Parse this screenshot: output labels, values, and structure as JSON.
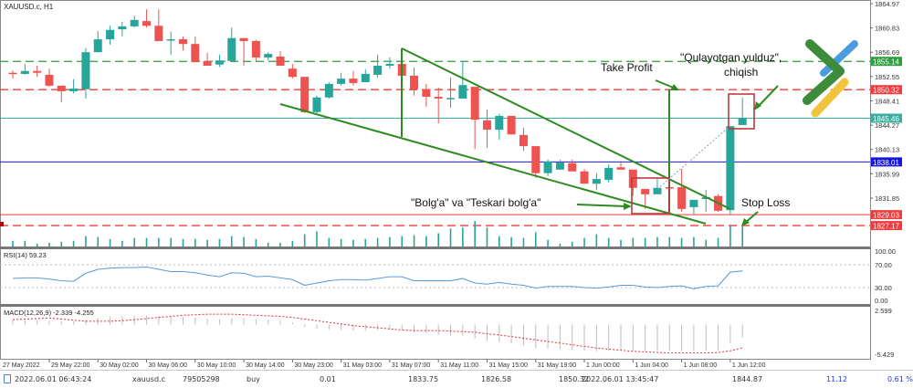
{
  "chart": {
    "symbol_label": "XAUUSD.c, H1",
    "rsi_label": "RSI(14) 59.23",
    "macd_label": "MACD(12,26,9) -2.339 -4.255",
    "colors": {
      "bull": "#26a69a",
      "bear": "#ef5350",
      "rsi": "#5b9bd5",
      "trend": "#2e8b22",
      "box": "#c0393b"
    },
    "price_axis": [
      "1864.97",
      "1860.83",
      "1856.69",
      "1852.55",
      "1848.41",
      "1844.27",
      "1840.13",
      "1835.99",
      "1831.85"
    ],
    "rsi_axis": [
      "100.00",
      "70.00",
      "30.00",
      "0.00"
    ],
    "macd_axis": [
      "2.599",
      "-5.429"
    ],
    "time_axis": [
      "27 May 2022",
      "29 May 22:00",
      "30 May 02:00",
      "30 May 06:00",
      "30 May 10:00",
      "30 May 14:00",
      "30 May 23:00",
      "31 May 03:00",
      "31 May 07:00",
      "31 May 11:00",
      "31 May 15:00",
      "31 May 19:00",
      "1 Jun 00:00",
      "1 Jun 04:00",
      "1 Jun 08:00",
      "1 Jun 12:00"
    ],
    "levels": [
      {
        "price": 1855.14,
        "label": "1855.14",
        "color": "#2e9e3e",
        "style": "dashed"
      },
      {
        "price": 1850.32,
        "label": "1850.32",
        "color": "#f03c3c",
        "style": "dashed"
      },
      {
        "price": 1845.46,
        "label": "1845.46",
        "color": "#3aaea0",
        "style": "solid"
      },
      {
        "price": 1838.01,
        "label": "1838.01",
        "color": "#1515e0",
        "style": "solid"
      },
      {
        "price": 1829.03,
        "label": "1829.03",
        "color": "#f03c3c",
        "style": "solid"
      },
      {
        "price": 1827.17,
        "label": "1827.17",
        "color": "#f03c3c",
        "style": "dashed"
      }
    ],
    "annotations": {
      "take_profit": "Take Profit",
      "shooting_star_1": "\"Qulayotgan yulduz\",",
      "shooting_star_2": "chiqish",
      "hammer": "\"Bolg'a\" va \"Teskari bolg'a\"",
      "stop_loss": "Stop Loss"
    },
    "ohlc": [
      [
        1853.2,
        1853.6,
        1852.2,
        1853.0
      ],
      [
        1853.0,
        1854.7,
        1852.85,
        1853.5
      ],
      [
        1853.5,
        1854.4,
        1852.5,
        1853.2
      ],
      [
        1852.85,
        1853.9,
        1850.8,
        1851.0
      ],
      [
        1851.0,
        1851.0,
        1848.2,
        1850.05
      ],
      [
        1850.05,
        1852.1,
        1849.7,
        1850.5
      ],
      [
        1850.4,
        1857.4,
        1848.8,
        1856.7
      ],
      [
        1856.7,
        1860.3,
        1856.7,
        1858.9
      ],
      [
        1858.9,
        1861.2,
        1858.0,
        1860.5
      ],
      [
        1860.6,
        1861.9,
        1859.4,
        1861.1
      ],
      [
        1861.1,
        1862.95,
        1860.9,
        1862.2
      ],
      [
        1862.0,
        1864.0,
        1860.9,
        1861.2
      ],
      [
        1861.2,
        1864.0,
        1858.6,
        1858.6
      ],
      [
        1858.8,
        1860.2,
        1856.3,
        1858.9
      ],
      [
        1858.9,
        1859.4,
        1857.0,
        1858.1
      ],
      [
        1858.1,
        1859.4,
        1855.0,
        1855.0
      ],
      [
        1855.2,
        1856.6,
        1854.4,
        1854.4
      ],
      [
        1854.6,
        1856.3,
        1854.2,
        1855.3
      ],
      [
        1855.2,
        1860.9,
        1855.2,
        1859.1
      ],
      [
        1859.1,
        1859.1,
        1854.4,
        1858.6
      ],
      [
        1858.6,
        1858.8,
        1855.2,
        1855.8
      ],
      [
        1855.8,
        1856.7,
        1855.3,
        1856.4
      ],
      [
        1855.96,
        1856.9,
        1854.4,
        1854.4
      ],
      [
        1853.9,
        1854.7,
        1852.2,
        1852.5
      ],
      [
        1852.5,
        1852.5,
        1846.3,
        1846.5
      ],
      [
        1846.5,
        1849.3,
        1846.3,
        1849.0
      ],
      [
        1849.0,
        1851.6,
        1848.8,
        1851.3
      ],
      [
        1851.3,
        1853.2,
        1851.0,
        1852.2
      ],
      [
        1852.2,
        1853.5,
        1851.0,
        1851.45
      ],
      [
        1851.6,
        1853.8,
        1851.6,
        1853.0
      ],
      [
        1852.85,
        1856.3,
        1852.4,
        1854.4
      ],
      [
        1854.4,
        1855.8,
        1853.9,
        1854.7
      ],
      [
        1854.7,
        1854.7,
        1852.7,
        1852.7
      ],
      [
        1852.7,
        1854.1,
        1849.3,
        1850.4
      ],
      [
        1850.4,
        1851.3,
        1847.4,
        1849.1
      ],
      [
        1849.1,
        1850.7,
        1844.6,
        1848.8
      ],
      [
        1848.8,
        1852.4,
        1847.25,
        1848.9
      ],
      [
        1848.8,
        1855.2,
        1848.8,
        1851.1
      ],
      [
        1850.8,
        1850.8,
        1840.2,
        1845.2
      ],
      [
        1845.1,
        1846.9,
        1840.4,
        1843.5
      ],
      [
        1843.5,
        1846.2,
        1841.8,
        1845.85
      ],
      [
        1845.85,
        1845.85,
        1842.7,
        1842.7
      ],
      [
        1842.6,
        1843.8,
        1839.9,
        1840.7
      ],
      [
        1840.7,
        1840.7,
        1835.3,
        1836.1
      ],
      [
        1836.1,
        1838.4,
        1835.6,
        1838.1
      ],
      [
        1836.7,
        1838.4,
        1836.7,
        1837.9
      ],
      [
        1837.8,
        1838.4,
        1836.4,
        1836.4
      ],
      [
        1836.4,
        1836.8,
        1834.3,
        1834.3
      ],
      [
        1834.3,
        1836.1,
        1833.25,
        1835.1
      ],
      [
        1834.97,
        1837.6,
        1834.5,
        1837.0
      ],
      [
        1837.1,
        1837.9,
        1836.7,
        1836.7
      ],
      [
        1836.7,
        1836.7,
        1832.2,
        1833.6
      ],
      [
        1833.4,
        1833.4,
        1830.0,
        1832.5
      ],
      [
        1832.5,
        1835.3,
        1832.5,
        1833.6
      ],
      [
        1833.7,
        1834.97,
        1832.6,
        1833.6
      ],
      [
        1833.7,
        1836.8,
        1829.5,
        1830.0
      ],
      [
        1830.3,
        1831.55,
        1829.1,
        1831.55
      ],
      [
        1831.7,
        1833.25,
        1829.5,
        1832.0
      ],
      [
        1832.2,
        1832.5,
        1829.5,
        1829.7
      ],
      [
        1829.8,
        1844.1,
        1829.1,
        1844.1
      ],
      [
        1844.3,
        1849.0,
        1844.3,
        1845.5
      ]
    ],
    "volume": [
      6,
      6,
      3,
      4,
      5,
      6,
      11,
      10,
      8,
      6,
      9,
      9,
      9,
      9,
      8,
      8,
      7,
      8,
      11,
      10,
      8,
      4,
      4,
      6,
      13,
      16,
      9,
      8,
      7,
      8,
      9,
      10,
      11,
      12,
      11,
      14,
      19,
      20,
      27,
      20,
      11,
      10,
      9,
      15,
      7,
      3,
      5,
      9,
      13,
      9,
      7,
      9,
      9,
      10,
      10,
      9,
      10,
      7,
      9,
      22,
      21
    ],
    "rsi": [
      46,
      47,
      47,
      45,
      42,
      41,
      55,
      62,
      64,
      65,
      65,
      66,
      62,
      58,
      58,
      56,
      52,
      49,
      56,
      55,
      49,
      50,
      47,
      44,
      34,
      38,
      42,
      44,
      44,
      43,
      46,
      49,
      49,
      42,
      42,
      42,
      42,
      46,
      38,
      36,
      39,
      36,
      34,
      29,
      32,
      32,
      32,
      30,
      29,
      31,
      34,
      34,
      31,
      30,
      32,
      33,
      28,
      32,
      33,
      57,
      59.23
    ],
    "macd_hist": [
      0.8,
      0.8,
      0.8,
      0.7,
      0.6,
      0.6,
      0.9,
      1.2,
      1.4,
      1.5,
      1.6,
      1.6,
      1.5,
      1.4,
      1.4,
      1.3,
      1.1,
      1.0,
      1.2,
      1.2,
      1.0,
      0.9,
      0.7,
      0.4,
      -0.4,
      -0.8,
      -0.9,
      -1.0,
      -1.1,
      -1.1,
      -1.0,
      -0.9,
      -1.0,
      -1.4,
      -1.6,
      -1.9,
      -2.0,
      -2.0,
      -2.6,
      -3.0,
      -3.2,
      -3.5,
      -3.8,
      -4.3,
      -4.4,
      -4.5,
      -4.6,
      -4.8,
      -4.9,
      -4.8,
      -4.7,
      -4.8,
      -4.9,
      -4.8,
      -4.8,
      -4.9,
      -4.9,
      -4.8,
      -4.8,
      -3.4,
      -2.339
    ],
    "macd_signal": [
      0.9,
      1.0,
      1.1,
      1.2,
      1.0,
      0.8,
      0.6,
      0.6,
      0.6,
      0.7,
      0.9,
      1.1,
      1.3,
      1.5,
      1.7,
      1.8,
      1.9,
      1.9,
      1.9,
      1.8,
      1.7,
      1.6,
      1.5,
      1.3,
      1.0,
      0.7,
      0.4,
      0.1,
      -0.2,
      -0.4,
      -0.6,
      -0.8,
      -1.0,
      -1.1,
      -1.1,
      -1.1,
      -1.2,
      -1.3,
      -1.4,
      -1.7,
      -1.9,
      -2.2,
      -2.5,
      -2.8,
      -3.1,
      -3.4,
      -3.7,
      -4.0,
      -4.3,
      -4.5,
      -4.7,
      -4.9,
      -5.0,
      -5.1,
      -5.2,
      -5.2,
      -5.2,
      -5.2,
      -5.1,
      -4.8,
      -4.255
    ]
  },
  "status_bar": {
    "open_time": "2022.06.01 06:43:24",
    "symbol": "xauusd.c",
    "ticket": "79505298",
    "type": "buy",
    "volume": "0.01",
    "open_price": "1833.75",
    "sl": "1826.58",
    "tp": "1850.32",
    "close_time": "2022.06.01 13:45:47",
    "close_price": "1844.87",
    "profit": "11.12",
    "percent": "0.61 %"
  }
}
